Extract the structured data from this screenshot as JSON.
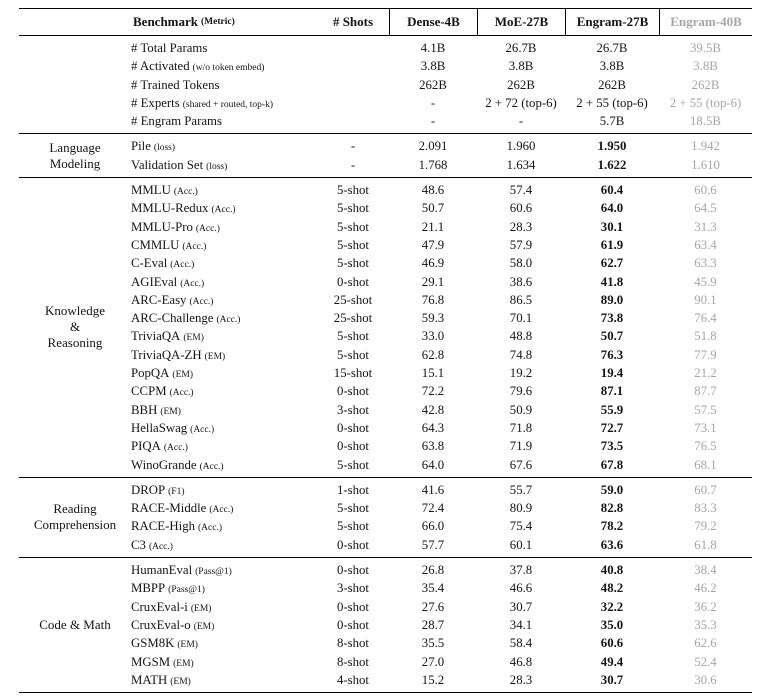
{
  "colors": {
    "grey_column": "#a6a6a6",
    "text": "#141414",
    "rule": "#000000"
  },
  "table": {
    "header": {
      "benchmark": "Benchmark",
      "metric_suffix": "(Metric)",
      "shots": "# Shots",
      "models": [
        "Dense-4B",
        "MoE-27B",
        "Engram-27B",
        "Engram-40B"
      ]
    },
    "sections": [
      {
        "label_lines": [],
        "rows": [
          {
            "name": "# Total Params",
            "suffix": "",
            "shots": "",
            "values": [
              "4.1B",
              "26.7B",
              "26.7B",
              "39.5B"
            ]
          },
          {
            "name": "# Activated",
            "suffix": "(w/o token embed)",
            "shots": "",
            "values": [
              "3.8B",
              "3.8B",
              "3.8B",
              "3.8B"
            ]
          },
          {
            "name": "# Trained Tokens",
            "suffix": "",
            "shots": "",
            "values": [
              "262B",
              "262B",
              "262B",
              "262B"
            ]
          },
          {
            "name": "# Experts",
            "suffix": "(shared + routed, top-k)",
            "shots": "",
            "values": [
              "-",
              "2 + 72 (top-6)",
              "2 + 55 (top-6)",
              "2 + 55 (top-6)"
            ]
          },
          {
            "name": "# Engram Params",
            "suffix": "",
            "shots": "",
            "values": [
              "-",
              "-",
              "5.7B",
              "18.5B"
            ]
          }
        ]
      },
      {
        "label_lines": [
          "Language",
          "Modeling"
        ],
        "rows": [
          {
            "name": "Pile",
            "suffix": "(loss)",
            "shots": "-",
            "values": [
              "2.091",
              "1.960",
              "1.950",
              "1.942"
            ]
          },
          {
            "name": "Validation Set",
            "suffix": "(loss)",
            "shots": "-",
            "values": [
              "1.768",
              "1.634",
              "1.622",
              "1.610"
            ]
          }
        ]
      },
      {
        "label_lines": [
          "Knowledge",
          "&",
          "Reasoning"
        ],
        "rows": [
          {
            "name": "MMLU",
            "suffix": "(Acc.)",
            "shots": "5-shot",
            "values": [
              "48.6",
              "57.4",
              "60.4",
              "60.6"
            ]
          },
          {
            "name": "MMLU-Redux",
            "suffix": "(Acc.)",
            "shots": "5-shot",
            "values": [
              "50.7",
              "60.6",
              "64.0",
              "64.5"
            ]
          },
          {
            "name": "MMLU-Pro",
            "suffix": "(Acc.)",
            "shots": "5-shot",
            "values": [
              "21.1",
              "28.3",
              "30.1",
              "31.3"
            ]
          },
          {
            "name": "CMMLU",
            "suffix": "(Acc.)",
            "shots": "5-shot",
            "values": [
              "47.9",
              "57.9",
              "61.9",
              "63.4"
            ]
          },
          {
            "name": "C-Eval",
            "suffix": "(Acc.)",
            "shots": "5-shot",
            "values": [
              "46.9",
              "58.0",
              "62.7",
              "63.3"
            ]
          },
          {
            "name": "AGIEval",
            "suffix": "(Acc.)",
            "shots": "0-shot",
            "values": [
              "29.1",
              "38.6",
              "41.8",
              "45.9"
            ]
          },
          {
            "name": "ARC-Easy",
            "suffix": "(Acc.)",
            "shots": "25-shot",
            "values": [
              "76.8",
              "86.5",
              "89.0",
              "90.1"
            ]
          },
          {
            "name": "ARC-Challenge",
            "suffix": "(Acc.)",
            "shots": "25-shot",
            "values": [
              "59.3",
              "70.1",
              "73.8",
              "76.4"
            ]
          },
          {
            "name": "TriviaQA",
            "suffix": "(EM)",
            "shots": "5-shot",
            "values": [
              "33.0",
              "48.8",
              "50.7",
              "51.8"
            ]
          },
          {
            "name": "TriviaQA-ZH",
            "suffix": "(EM)",
            "shots": "5-shot",
            "values": [
              "62.8",
              "74.8",
              "76.3",
              "77.9"
            ]
          },
          {
            "name": "PopQA",
            "suffix": "(EM)",
            "shots": "15-shot",
            "values": [
              "15.1",
              "19.2",
              "19.4",
              "21.2"
            ]
          },
          {
            "name": "CCPM",
            "suffix": "(Acc.)",
            "shots": "0-shot",
            "values": [
              "72.2",
              "79.6",
              "87.1",
              "87.7"
            ]
          },
          {
            "name": "BBH",
            "suffix": "(EM)",
            "shots": "3-shot",
            "values": [
              "42.8",
              "50.9",
              "55.9",
              "57.5"
            ]
          },
          {
            "name": "HellaSwag",
            "suffix": "(Acc.)",
            "shots": "0-shot",
            "values": [
              "64.3",
              "71.8",
              "72.7",
              "73.1"
            ]
          },
          {
            "name": "PIQA",
            "suffix": "(Acc.)",
            "shots": "0-shot",
            "values": [
              "63.8",
              "71.9",
              "73.5",
              "76.5"
            ]
          },
          {
            "name": "WinoGrande",
            "suffix": "(Acc.)",
            "shots": "5-shot",
            "values": [
              "64.0",
              "67.6",
              "67.8",
              "68.1"
            ]
          }
        ]
      },
      {
        "label_lines": [
          "Reading",
          "Comprehension"
        ],
        "rows": [
          {
            "name": "DROP",
            "suffix": "(F1)",
            "shots": "1-shot",
            "values": [
              "41.6",
              "55.7",
              "59.0",
              "60.7"
            ]
          },
          {
            "name": "RACE-Middle",
            "suffix": "(Acc.)",
            "shots": "5-shot",
            "values": [
              "72.4",
              "80.9",
              "82.8",
              "83.3"
            ]
          },
          {
            "name": "RACE-High",
            "suffix": "(Acc.)",
            "shots": "5-shot",
            "values": [
              "66.0",
              "75.4",
              "78.2",
              "79.2"
            ]
          },
          {
            "name": "C3",
            "suffix": "(Acc.)",
            "shots": "0-shot",
            "values": [
              "57.7",
              "60.1",
              "63.6",
              "61.8"
            ]
          }
        ]
      },
      {
        "label_lines": [
          "Code & Math"
        ],
        "rows": [
          {
            "name": "HumanEval",
            "suffix": "(Pass@1)",
            "shots": "0-shot",
            "values": [
              "26.8",
              "37.8",
              "40.8",
              "38.4"
            ]
          },
          {
            "name": "MBPP",
            "suffix": "(Pass@1)",
            "shots": "3-shot",
            "values": [
              "35.4",
              "46.6",
              "48.2",
              "46.2"
            ]
          },
          {
            "name": "CruxEval-i",
            "suffix": "(EM)",
            "shots": "0-shot",
            "values": [
              "27.6",
              "30.7",
              "32.2",
              "36.2"
            ]
          },
          {
            "name": "CruxEval-o",
            "suffix": "(EM)",
            "shots": "0-shot",
            "values": [
              "28.7",
              "34.1",
              "35.0",
              "35.3"
            ]
          },
          {
            "name": "GSM8K",
            "suffix": "(EM)",
            "shots": "8-shot",
            "values": [
              "35.5",
              "58.4",
              "60.6",
              "62.6"
            ]
          },
          {
            "name": "MGSM",
            "suffix": "(EM)",
            "shots": "8-shot",
            "values": [
              "27.0",
              "46.8",
              "49.4",
              "52.4"
            ]
          },
          {
            "name": "MATH",
            "suffix": "(EM)",
            "shots": "4-shot",
            "values": [
              "15.2",
              "28.3",
              "30.7",
              "30.6"
            ]
          }
        ]
      }
    ]
  }
}
